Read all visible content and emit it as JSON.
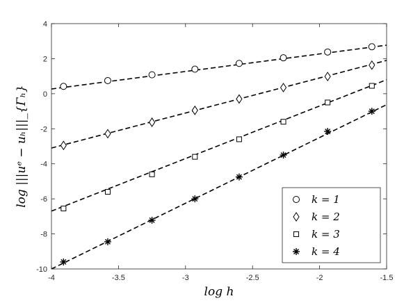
{
  "chart_data": {
    "type": "scatter",
    "xlabel": "log h",
    "ylabel": "log |||uᵉ − uₕ|||_{Γₕ}",
    "xlim": [
      -4,
      -1.5
    ],
    "ylim": [
      -10,
      4
    ],
    "x_ticks": [
      "-4",
      "-3.5",
      "-3",
      "-2.5",
      "-2",
      "-1.5"
    ],
    "y_ticks": [
      "-10",
      "-8",
      "-6",
      "-4",
      "-2",
      "0",
      "2",
      "4"
    ],
    "x_tick_values": [
      -4,
      -3.5,
      -3,
      -2.5,
      -2,
      -1.5
    ],
    "y_tick_values": [
      -10,
      -8,
      -6,
      -4,
      -2,
      0,
      2,
      4
    ],
    "grid": false,
    "legend_position": "bottom-right",
    "x": [
      -3.91,
      -3.58,
      -3.25,
      -2.93,
      -2.6,
      -2.27,
      -1.94,
      -1.61
    ],
    "series": [
      {
        "name": "k = 1",
        "marker": "circle",
        "values": [
          0.42,
          0.75,
          1.08,
          1.4,
          1.73,
          2.05,
          2.38,
          2.68
        ],
        "fit": {
          "slope": 1.0,
          "intercept": 4.27
        }
      },
      {
        "name": "k = 2",
        "marker": "diamond",
        "values": [
          -2.95,
          -2.28,
          -1.63,
          -0.95,
          -0.3,
          0.35,
          0.98,
          1.63
        ],
        "fit": {
          "slope": 2.0,
          "intercept": 4.9
        }
      },
      {
        "name": "k = 3",
        "marker": "square",
        "values": [
          -6.55,
          -5.6,
          -4.6,
          -3.6,
          -2.6,
          -1.6,
          -0.5,
          0.45
        ],
        "fit": {
          "slope": 3.0,
          "intercept": 5.3
        }
      },
      {
        "name": "k = 4",
        "marker": "asterisk",
        "values": [
          -9.6,
          -8.45,
          -7.22,
          -6.0,
          -4.75,
          -3.5,
          -2.15,
          -1.0
        ],
        "fit": {
          "slope": 3.75,
          "intercept": 5.0
        }
      }
    ]
  }
}
